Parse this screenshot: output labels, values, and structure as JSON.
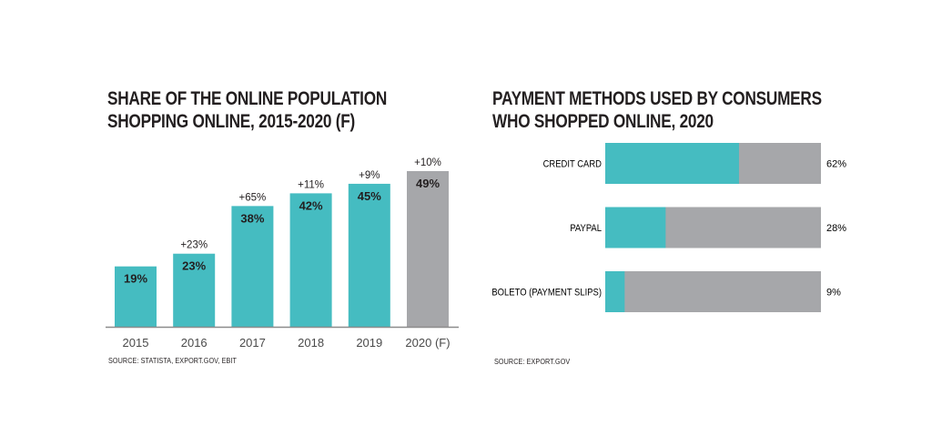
{
  "chart_data": [
    {
      "type": "bar",
      "title_lines": [
        "SHARE OF THE ONLINE POPULATION",
        "SHOPPING ONLINE, 2015-2020 (F)"
      ],
      "categories": [
        "2015",
        "2016",
        "2017",
        "2018",
        "2019",
        "2020 (F)"
      ],
      "values": [
        19,
        23,
        38,
        42,
        45,
        49
      ],
      "value_labels": [
        "19%",
        "23%",
        "38%",
        "42%",
        "45%",
        "49%"
      ],
      "growth_labels": [
        "",
        "+23%",
        "+65%",
        "+11%",
        "+9%",
        "+10%"
      ],
      "forecast_index": 5,
      "ylim": [
        0,
        53
      ],
      "grid": false,
      "colors": {
        "actual": "#45bcc1",
        "forecast": "#a6a7aa",
        "axis": "#8c8c8c"
      },
      "source": "SOURCE: STATISTA, EXPORT.GOV, EBIT"
    },
    {
      "type": "bar",
      "orientation": "horizontal",
      "stacked": true,
      "title_lines": [
        "PAYMENT METHODS USED BY CONSUMERS",
        "WHO SHOPPED ONLINE, 2020"
      ],
      "categories": [
        "CREDIT CARD",
        "PAYPAL",
        "BOLETO (PAYMENT SLIPS)"
      ],
      "values": [
        62,
        28,
        9
      ],
      "value_labels": [
        "62%",
        "28%",
        "9%"
      ],
      "xlim": [
        0,
        100
      ],
      "grid": false,
      "colors": {
        "share": "#45bcc1",
        "remainder": "#a6a7aa"
      },
      "source": "SOURCE: EXPORT.GOV"
    }
  ]
}
